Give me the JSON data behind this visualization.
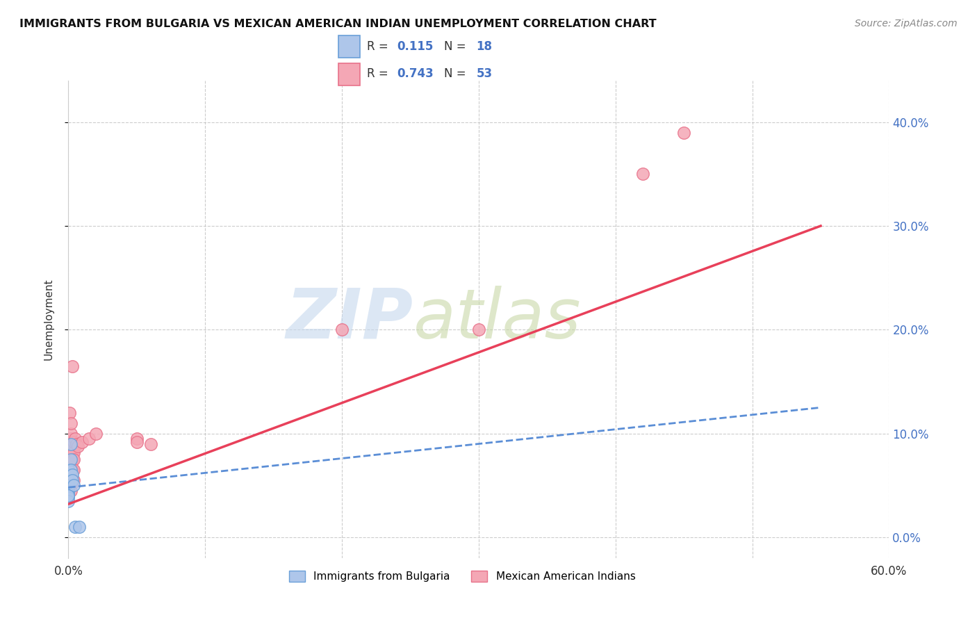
{
  "title": "IMMIGRANTS FROM BULGARIA VS MEXICAN AMERICAN INDIAN UNEMPLOYMENT CORRELATION CHART",
  "source": "Source: ZipAtlas.com",
  "ylabel": "Unemployment",
  "xlim": [
    0.0,
    0.6
  ],
  "ylim": [
    -0.02,
    0.44
  ],
  "xticks": [
    0.0,
    0.1,
    0.2,
    0.3,
    0.4,
    0.5,
    0.6
  ],
  "xtick_labels": [
    "0.0%",
    "",
    "",
    "",
    "",
    "",
    "60.0%"
  ],
  "yticks": [
    0.0,
    0.1,
    0.2,
    0.3,
    0.4
  ],
  "ytick_labels_right": [
    "0.0%",
    "10.0%",
    "20.0%",
    "30.0%",
    "40.0%"
  ],
  "bulgaria_color": "#aec6ea",
  "mexico_color": "#f4a7b5",
  "bulgaria_edge": "#6a9fd8",
  "mexico_edge": "#e8728a",
  "trend_bulgaria_color": "#5b8ed6",
  "trend_mexico_color": "#e8405a",
  "watermark_zip": "ZIP",
  "watermark_atlas": "atlas",
  "watermark_color_zip": "#c5d8ee",
  "watermark_color_atlas": "#c8d8a8",
  "bulgaria_scatter": [
    [
      0.0,
      0.065
    ],
    [
      0.0,
      0.06
    ],
    [
      0.0,
      0.055
    ],
    [
      0.0,
      0.05
    ],
    [
      0.0,
      0.045
    ],
    [
      0.0,
      0.042
    ],
    [
      0.0,
      0.04
    ],
    [
      0.0,
      0.038
    ],
    [
      0.0,
      0.035
    ],
    [
      0.002,
      0.075
    ],
    [
      0.002,
      0.09
    ],
    [
      0.002,
      0.065
    ],
    [
      0.003,
      0.06
    ],
    [
      0.003,
      0.055
    ],
    [
      0.004,
      0.05
    ],
    [
      0.005,
      0.01
    ],
    [
      0.008,
      0.01
    ],
    [
      0.0,
      0.04
    ]
  ],
  "mexico_scatter": [
    [
      0.0,
      0.07
    ],
    [
      0.0,
      0.065
    ],
    [
      0.0,
      0.06
    ],
    [
      0.0,
      0.058
    ],
    [
      0.0,
      0.055
    ],
    [
      0.0,
      0.052
    ],
    [
      0.0,
      0.05
    ],
    [
      0.0,
      0.048
    ],
    [
      0.0,
      0.045
    ],
    [
      0.0,
      0.042
    ],
    [
      0.001,
      0.12
    ],
    [
      0.001,
      0.055
    ],
    [
      0.001,
      0.062
    ],
    [
      0.001,
      0.068
    ],
    [
      0.001,
      0.075
    ],
    [
      0.001,
      0.08
    ],
    [
      0.001,
      0.085
    ],
    [
      0.001,
      0.09
    ],
    [
      0.001,
      0.052
    ],
    [
      0.001,
      0.048
    ],
    [
      0.002,
      0.072
    ],
    [
      0.002,
      0.078
    ],
    [
      0.002,
      0.082
    ],
    [
      0.002,
      0.095
    ],
    [
      0.002,
      0.065
    ],
    [
      0.002,
      0.055
    ],
    [
      0.002,
      0.1
    ],
    [
      0.002,
      0.11
    ],
    [
      0.002,
      0.045
    ],
    [
      0.003,
      0.075
    ],
    [
      0.003,
      0.082
    ],
    [
      0.003,
      0.09
    ],
    [
      0.003,
      0.065
    ],
    [
      0.003,
      0.052
    ],
    [
      0.003,
      0.165
    ],
    [
      0.004,
      0.082
    ],
    [
      0.004,
      0.092
    ],
    [
      0.004,
      0.075
    ],
    [
      0.004,
      0.055
    ],
    [
      0.004,
      0.065
    ],
    [
      0.005,
      0.095
    ],
    [
      0.006,
      0.09
    ],
    [
      0.007,
      0.088
    ],
    [
      0.01,
      0.092
    ],
    [
      0.015,
      0.095
    ],
    [
      0.02,
      0.1
    ],
    [
      0.05,
      0.095
    ],
    [
      0.06,
      0.09
    ],
    [
      0.2,
      0.2
    ],
    [
      0.3,
      0.2
    ],
    [
      0.42,
      0.35
    ],
    [
      0.45,
      0.39
    ],
    [
      0.05,
      0.092
    ]
  ],
  "bulgaria_trend_x": [
    0.0,
    0.55
  ],
  "bulgaria_trend_y": [
    0.048,
    0.125
  ],
  "mexico_trend_x": [
    0.0,
    0.55
  ],
  "mexico_trend_y": [
    0.032,
    0.3
  ],
  "legend_r_bulgaria": "R = ",
  "legend_val_bulgaria": "0.115",
  "legend_n_bulgaria": "N = ",
  "legend_nval_bulgaria": "18",
  "legend_r_mexico": "R = ",
  "legend_val_mexico": "0.743",
  "legend_n_mexico": "N = ",
  "legend_nval_mexico": "53",
  "legend_label_bulgaria": "Immigrants from Bulgaria",
  "legend_label_mexico": "Mexican American Indians",
  "text_color": "#333333",
  "accent_color": "#4472c4",
  "grid_color": "#cccccc",
  "marker_size": 160
}
